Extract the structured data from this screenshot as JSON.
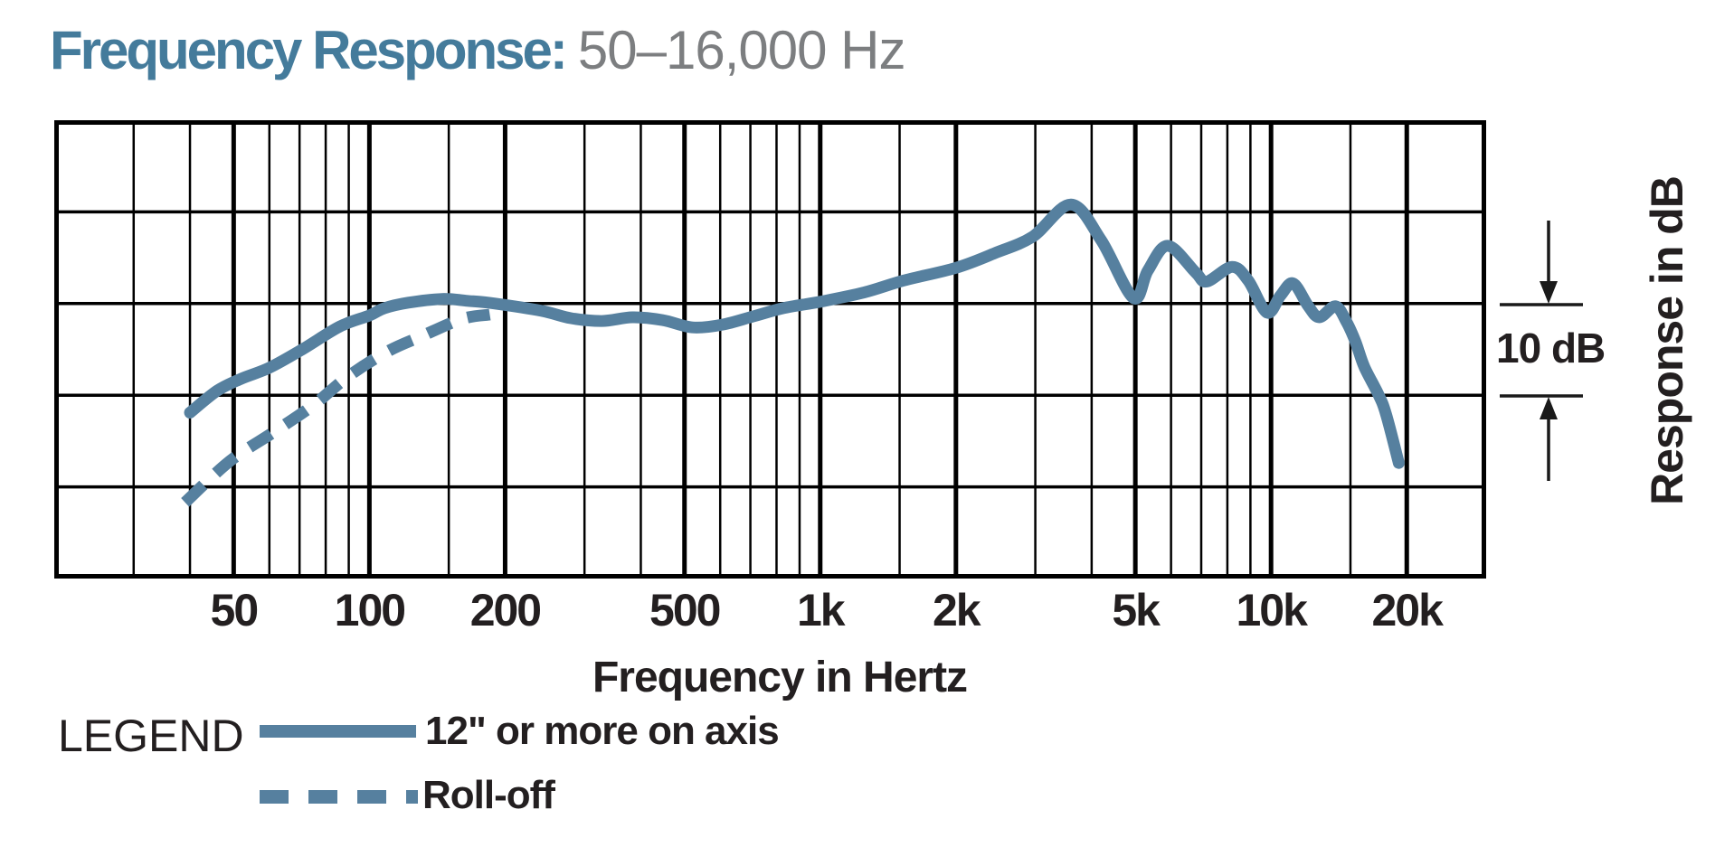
{
  "title": {
    "heading": "Frequency Response:",
    "range": "50–16,000 Hz"
  },
  "colors": {
    "title_teal": "#447B9B",
    "title_gray": "#7C7E80",
    "curve_blue": "#56809F",
    "ink": "#231F20",
    "grid": "#000000"
  },
  "chart_data": {
    "type": "line",
    "title": "Frequency Response: 50–16,000 Hz",
    "x_axis": {
      "label": "Frequency in Hertz",
      "scale": "log",
      "min_hz": 20,
      "max_hz": 30000,
      "major_ticks": [
        {
          "f": 50,
          "label": "50"
        },
        {
          "f": 100,
          "label": "100"
        },
        {
          "f": 200,
          "label": "200"
        },
        {
          "f": 500,
          "label": "500"
        },
        {
          "f": 1000,
          "label": "1k"
        },
        {
          "f": 2000,
          "label": "2k"
        },
        {
          "f": 5000,
          "label": "5k"
        },
        {
          "f": 10000,
          "label": "10k"
        },
        {
          "f": 20000,
          "label": "20k"
        }
      ],
      "minor_ticks": [
        30,
        40,
        60,
        70,
        80,
        90,
        150,
        300,
        400,
        600,
        700,
        800,
        900,
        1500,
        3000,
        4000,
        6000,
        7000,
        8000,
        9000,
        15000
      ]
    },
    "y_axis": {
      "label": "Response in dB",
      "scale_marker": "10 dB",
      "db_per_division": 10,
      "ylim_db": [
        -30,
        20
      ],
      "gridline_db": [
        10,
        0,
        -10,
        -20
      ]
    },
    "series": [
      {
        "name": "12\" or more on axis",
        "style": "solid",
        "points_hz_db": [
          [
            40,
            -11.9
          ],
          [
            46,
            -9.5
          ],
          [
            52,
            -8.2
          ],
          [
            60,
            -7.0
          ],
          [
            71,
            -5.0
          ],
          [
            86,
            -2.5
          ],
          [
            100,
            -1.3
          ],
          [
            108,
            -0.5
          ],
          [
            122,
            0.1
          ],
          [
            145,
            0.5
          ],
          [
            165,
            0.3
          ],
          [
            190,
            0.0
          ],
          [
            241,
            -0.8
          ],
          [
            280,
            -1.6
          ],
          [
            328,
            -1.9
          ],
          [
            383,
            -1.5
          ],
          [
            447,
            -1.8
          ],
          [
            521,
            -2.6
          ],
          [
            607,
            -2.3
          ],
          [
            710,
            -1.4
          ],
          [
            828,
            -0.5
          ],
          [
            1000,
            0.2
          ],
          [
            1250,
            1.2
          ],
          [
            1530,
            2.5
          ],
          [
            2000,
            3.9
          ],
          [
            2440,
            5.5
          ],
          [
            2960,
            7.3
          ],
          [
            3600,
            10.8
          ],
          [
            4200,
            6.9
          ],
          [
            4950,
            0.6
          ],
          [
            5330,
            3.6
          ],
          [
            5900,
            6.3
          ],
          [
            6800,
            3.4
          ],
          [
            7200,
            2.4
          ],
          [
            8200,
            4.0
          ],
          [
            8900,
            2.5
          ],
          [
            9800,
            -1.0
          ],
          [
            10500,
            0.9
          ],
          [
            11200,
            2.2
          ],
          [
            12100,
            -0.3
          ],
          [
            12800,
            -1.5
          ],
          [
            13900,
            -0.3
          ],
          [
            14700,
            -2.0
          ],
          [
            15400,
            -4.2
          ],
          [
            16100,
            -6.9
          ],
          [
            17300,
            -9.9
          ],
          [
            18000,
            -12.1
          ],
          [
            19200,
            -17.4
          ]
        ]
      },
      {
        "name": "Roll-off",
        "style": "dashed",
        "points_hz_db": [
          [
            39,
            -21.7
          ],
          [
            49,
            -17.2
          ],
          [
            61,
            -14.1
          ],
          [
            75,
            -11.1
          ],
          [
            90,
            -7.9
          ],
          [
            110,
            -5.2
          ],
          [
            130,
            -3.6
          ],
          [
            160,
            -1.7
          ],
          [
            185,
            -1.2
          ]
        ]
      }
    ]
  },
  "legend": {
    "heading": "LEGEND",
    "items": [
      {
        "label": "12\" or more on axis",
        "style": "solid"
      },
      {
        "label": "Roll-off",
        "style": "dashed"
      }
    ]
  }
}
